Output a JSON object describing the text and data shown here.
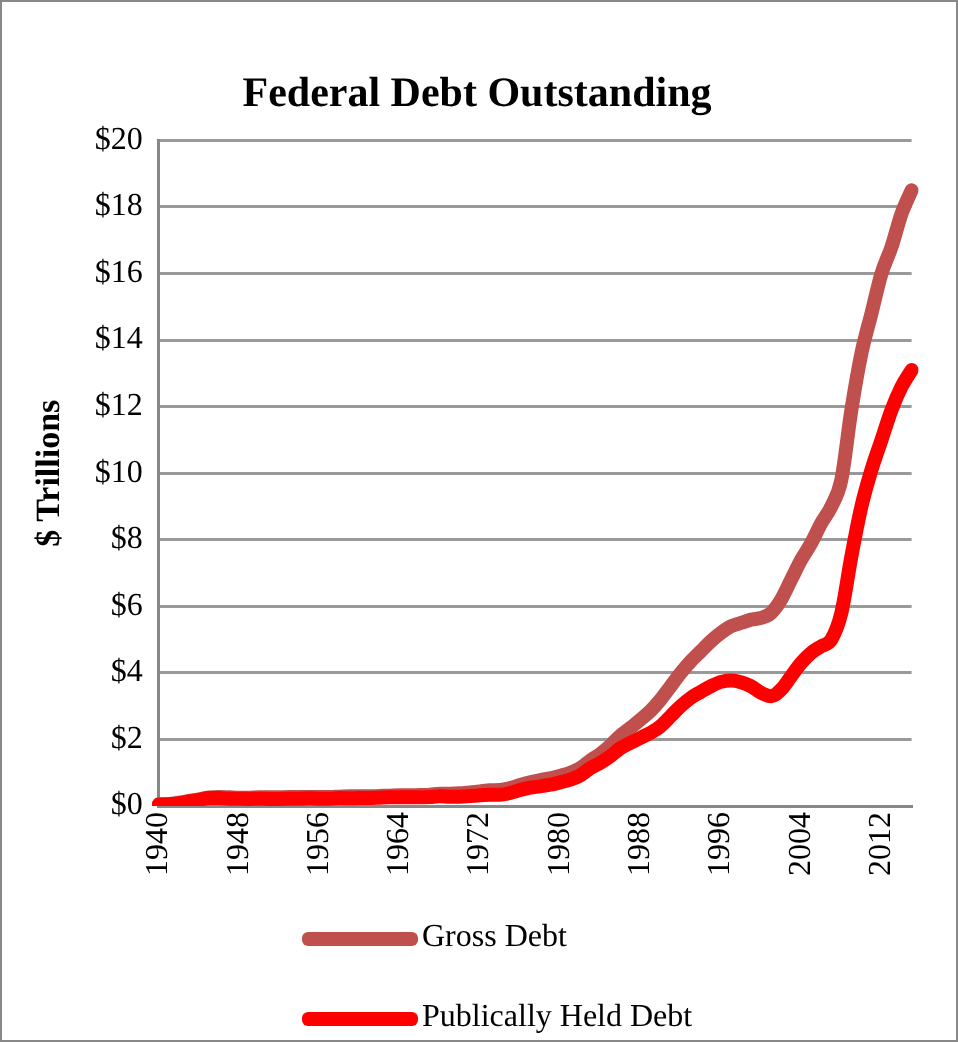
{
  "chart_data": {
    "type": "line",
    "title": "Federal Debt Outstanding",
    "ylabel": "$ Trillions",
    "categories": [
      "1940",
      null,
      null,
      null,
      null,
      null,
      null,
      null,
      "1948",
      null,
      null,
      null,
      null,
      null,
      null,
      null,
      "1956",
      null,
      null,
      null,
      null,
      null,
      null,
      null,
      "1964",
      null,
      null,
      null,
      null,
      null,
      null,
      null,
      "1972",
      null,
      null,
      null,
      null,
      null,
      null,
      null,
      "1980",
      null,
      null,
      null,
      null,
      null,
      null,
      null,
      "1988",
      null,
      null,
      null,
      null,
      null,
      null,
      null,
      "1996",
      null,
      null,
      null,
      null,
      null,
      null,
      null,
      "2004",
      null,
      null,
      null,
      null,
      null,
      null,
      null,
      "2012",
      null,
      null,
      null
    ],
    "series": [
      {
        "name": "Gross Debt",
        "color": "#c0504d",
        "values": [
          0.05,
          0.06,
          0.1,
          0.15,
          0.2,
          0.26,
          0.27,
          0.26,
          0.25,
          0.25,
          0.26,
          0.26,
          0.26,
          0.27,
          0.27,
          0.27,
          0.27,
          0.27,
          0.28,
          0.29,
          0.29,
          0.29,
          0.3,
          0.31,
          0.32,
          0.32,
          0.33,
          0.34,
          0.37,
          0.37,
          0.38,
          0.41,
          0.44,
          0.47,
          0.48,
          0.54,
          0.63,
          0.71,
          0.78,
          0.83,
          0.91,
          1.0,
          1.14,
          1.37,
          1.57,
          1.82,
          2.12,
          2.35,
          2.6,
          2.86,
          3.2,
          3.6,
          4.0,
          4.35,
          4.65,
          4.95,
          5.2,
          5.4,
          5.5,
          5.6,
          5.65,
          5.8,
          6.2,
          6.8,
          7.4,
          7.9,
          8.5,
          9.0,
          9.8,
          11.9,
          13.6,
          14.8,
          16.0,
          16.8,
          17.8,
          18.5
        ]
      },
      {
        "name": "Publically Held Debt",
        "color": "#ff0000",
        "values": [
          0.04,
          0.05,
          0.08,
          0.13,
          0.18,
          0.24,
          0.24,
          0.22,
          0.22,
          0.21,
          0.22,
          0.21,
          0.21,
          0.22,
          0.22,
          0.23,
          0.22,
          0.22,
          0.24,
          0.23,
          0.24,
          0.24,
          0.25,
          0.26,
          0.26,
          0.26,
          0.26,
          0.27,
          0.29,
          0.28,
          0.28,
          0.3,
          0.32,
          0.34,
          0.34,
          0.39,
          0.48,
          0.55,
          0.59,
          0.64,
          0.71,
          0.79,
          0.92,
          1.14,
          1.3,
          1.5,
          1.74,
          1.9,
          2.05,
          2.2,
          2.4,
          2.7,
          3.0,
          3.25,
          3.43,
          3.6,
          3.73,
          3.77,
          3.72,
          3.6,
          3.4,
          3.3,
          3.5,
          3.9,
          4.3,
          4.6,
          4.8,
          5.0,
          5.8,
          7.5,
          9.0,
          10.1,
          11.0,
          11.9,
          12.6,
          13.1
        ]
      }
    ],
    "ylim": [
      0,
      20
    ],
    "yticks": [
      {
        "value": 0,
        "label": "$0"
      },
      {
        "value": 2,
        "label": "$2"
      },
      {
        "value": 4,
        "label": "$4"
      },
      {
        "value": 6,
        "label": "$6"
      },
      {
        "value": 8,
        "label": "$8"
      },
      {
        "value": 10,
        "label": "$10"
      },
      {
        "value": 12,
        "label": "$12"
      },
      {
        "value": 14,
        "label": "$14"
      },
      {
        "value": 16,
        "label": "$16"
      },
      {
        "value": 18,
        "label": "$18"
      },
      {
        "value": 20,
        "label": "$20"
      }
    ],
    "grid": "y",
    "legend": "bottom",
    "marker": "none",
    "line_style": "solid"
  }
}
